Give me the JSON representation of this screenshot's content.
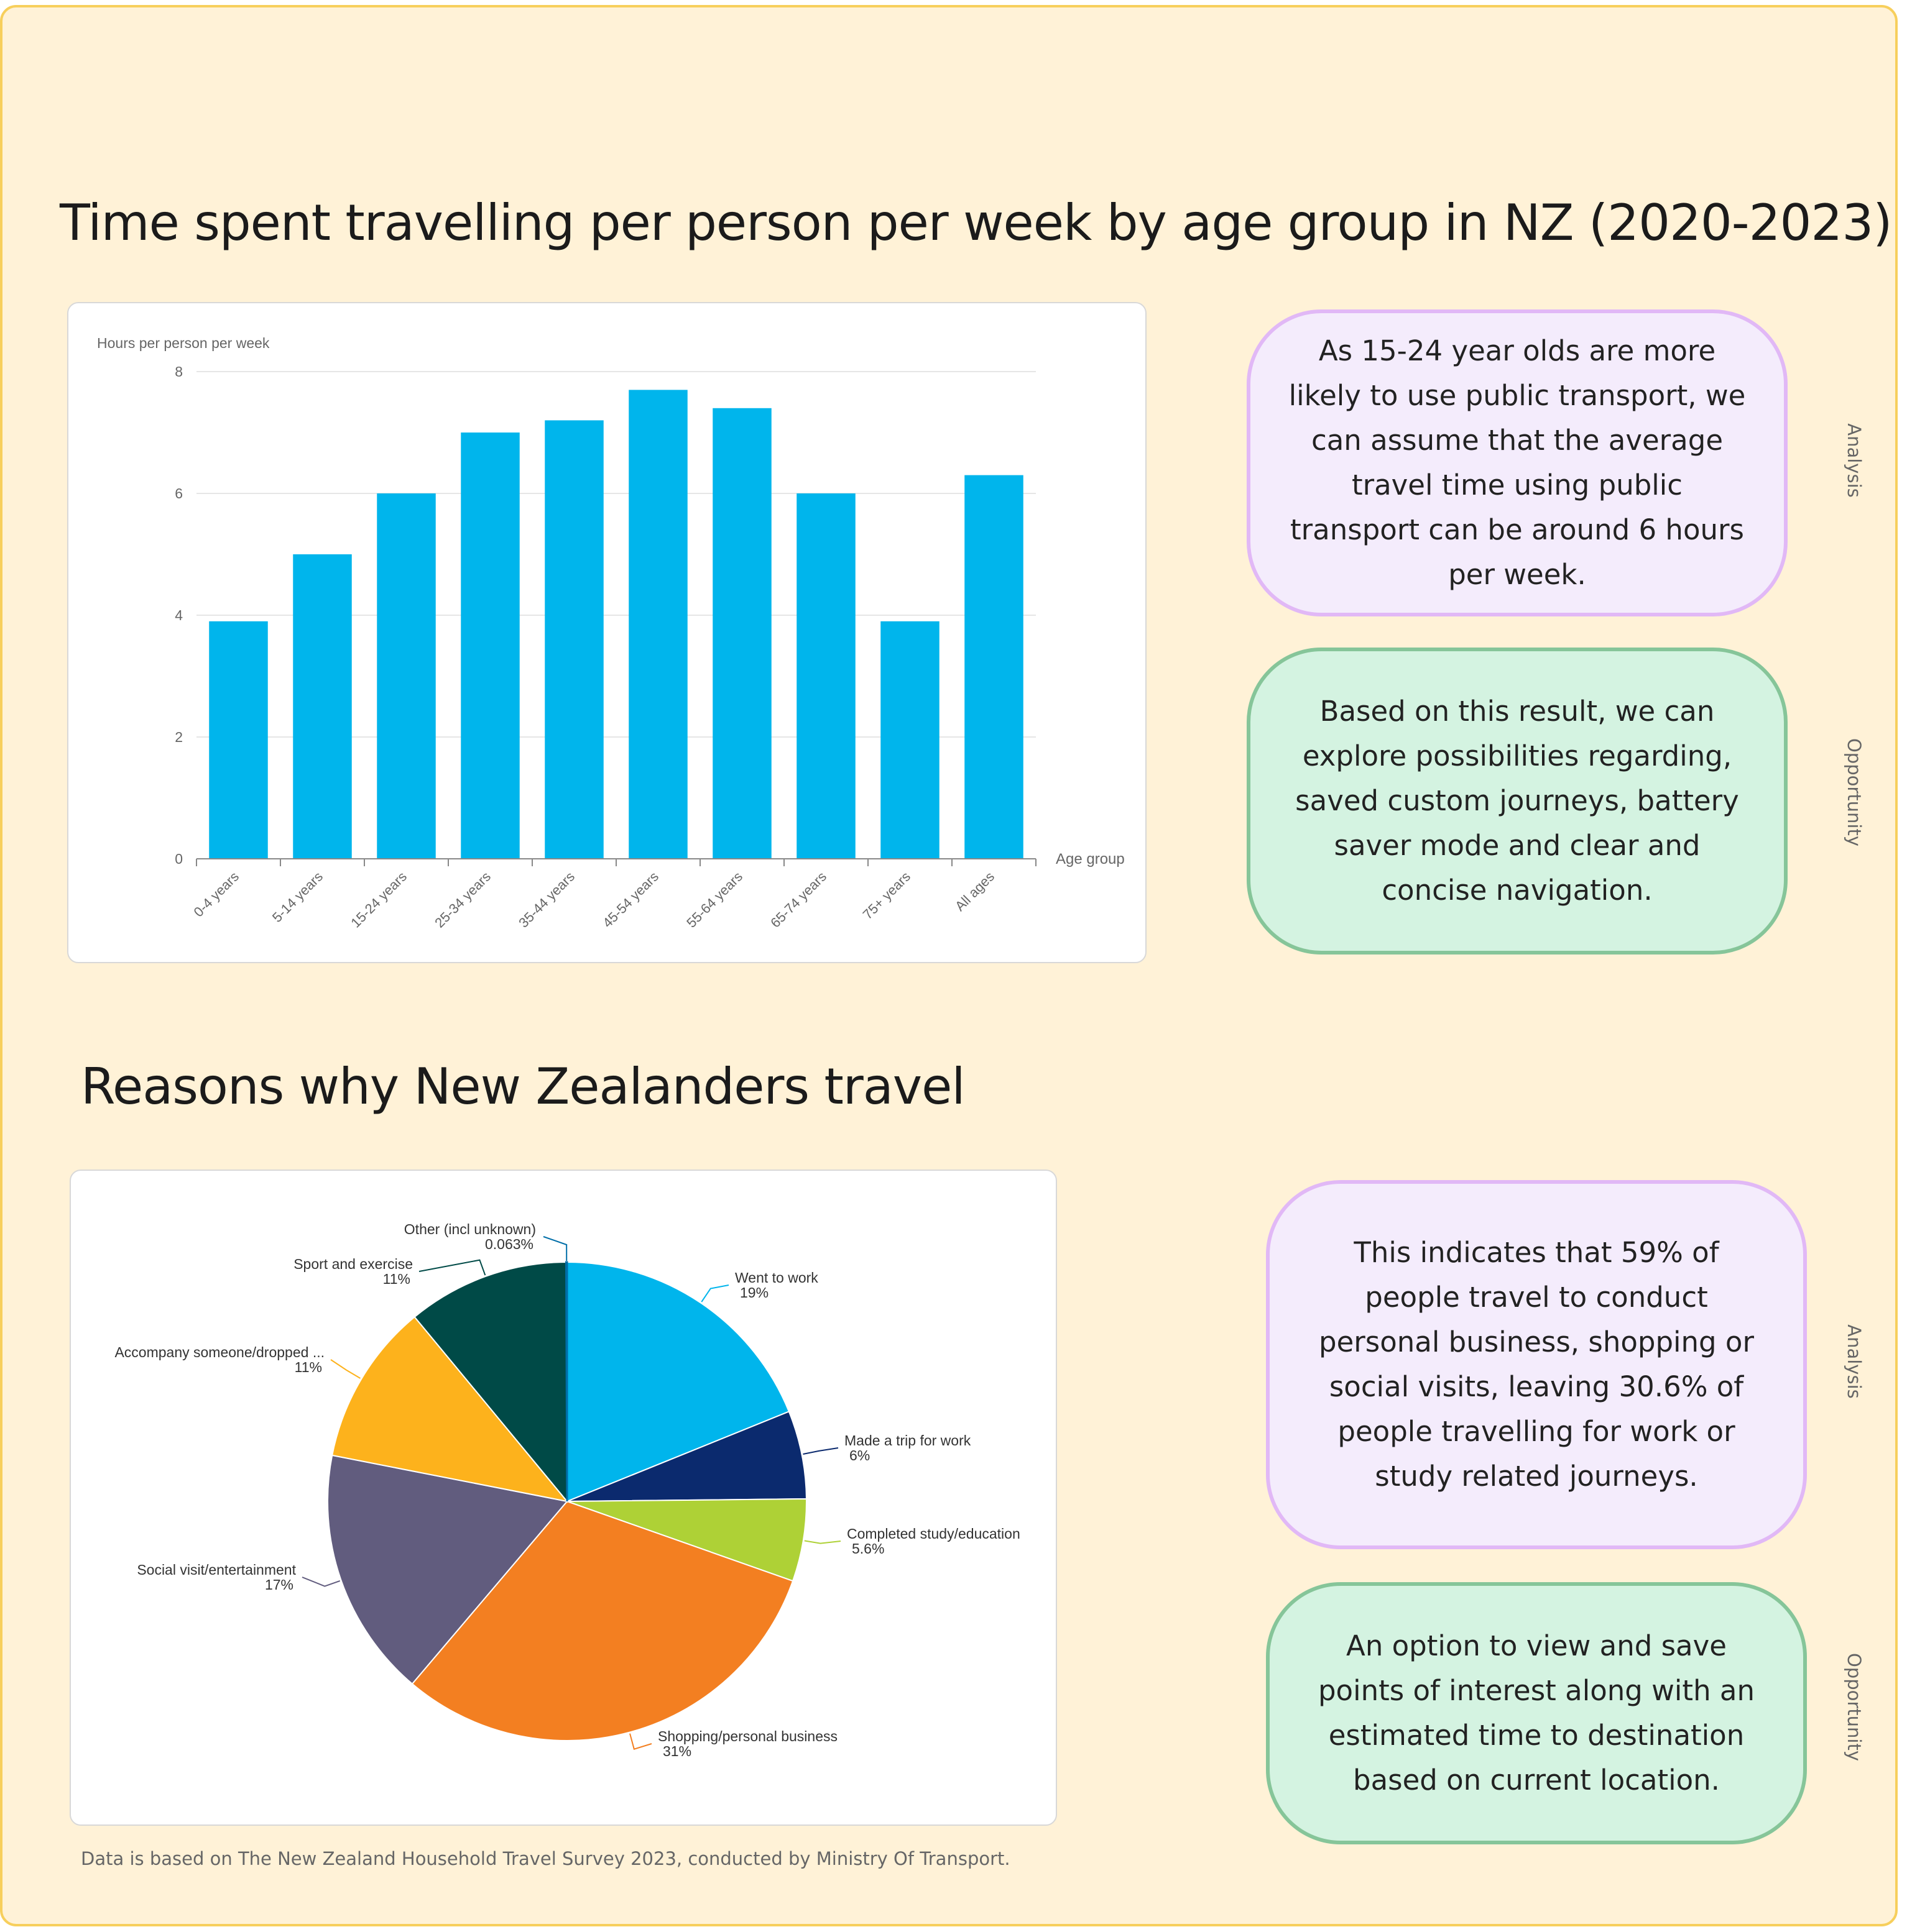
{
  "charts_section": {
    "bar_title": "Time spent travelling per person per week by age group in NZ (2020-2023)",
    "pie_title": "Reasons why New Zealanders travel",
    "footnote": "Data is based on The New Zealand Household Travel Survey 2023, conducted by Ministry Of Transport."
  },
  "notes": [
    {
      "kind": "analysis",
      "label": "Analysis",
      "text": "As 15-24 year olds are more likely to use public transport, we can assume that the average travel time using public transport can be around 6 hours per week."
    },
    {
      "kind": "opportunity",
      "label": "Opportunity",
      "text": "Based on this result, we can explore possibilities regarding, saved custom journeys, battery saver mode and clear and concise navigation."
    },
    {
      "kind": "analysis",
      "label": "Analysis",
      "text": "This indicates that 59% of people travel to conduct personal business, shopping or social visits, leaving 30.6% of people travelling for work or study related journeys."
    },
    {
      "kind": "opportunity",
      "label": "Opportunity",
      "text": "An option to view and save points of interest along with an estimated time to destination based on current location."
    }
  ],
  "colors": {
    "board_bg": "#fff2d7",
    "board_border": "#f7cf5c",
    "analysis_bg": "#f4ecfc",
    "analysis_border": "#e1b8f6",
    "opportunity_bg": "#d4f3e1",
    "opportunity_border": "#86c599",
    "bar": "#00b5ec"
  },
  "chart_data": [
    {
      "type": "bar",
      "title": "Time spent travelling per person per week by age group in NZ (2020-2023)",
      "ylabel": "Hours per person per week",
      "xlabel": "Age group",
      "ylim": [
        0,
        8
      ],
      "yticks": [
        "0",
        "2",
        "4",
        "6",
        "8"
      ],
      "grid": true,
      "categories": [
        "0-4 years",
        "5-14 years",
        "15-24 years",
        "25-34 years",
        "35-44 years",
        "45-54 years",
        "55-64 years",
        "65-74 years",
        "75+ years",
        "All ages"
      ],
      "values": [
        3.9,
        5.0,
        6.0,
        7.0,
        7.2,
        7.7,
        7.4,
        6.0,
        3.9,
        6.3
      ],
      "color": "#00b5ec"
    },
    {
      "type": "pie",
      "title": "Reasons why New Zealanders travel",
      "slices": [
        {
          "label": "Went to work",
          "value_label": "19%",
          "value": 19,
          "color": "#00b5ec"
        },
        {
          "label": "Made a trip for work",
          "value_label": "6%",
          "value": 6,
          "color": "#0b2a6e"
        },
        {
          "label": "Completed study/education",
          "value_label": "5.6%",
          "value": 5.6,
          "color": "#aed136"
        },
        {
          "label": "Shopping/personal business",
          "value_label": "31%",
          "value": 31,
          "color": "#f37f21"
        },
        {
          "label": "Social visit/entertainment",
          "value_label": "17%",
          "value": 17,
          "color": "#615c7e"
        },
        {
          "label": "Accompany someone/dropped ...",
          "value_label": "11%",
          "value": 11,
          "color": "#fdb21c"
        },
        {
          "label": "Sport and exercise",
          "value_label": "11%",
          "value": 11,
          "color": "#004a47"
        },
        {
          "label": "Other (incl unknown)",
          "value_label": "0.063%",
          "value": 0.063,
          "color": "#006ea8"
        }
      ]
    }
  ]
}
